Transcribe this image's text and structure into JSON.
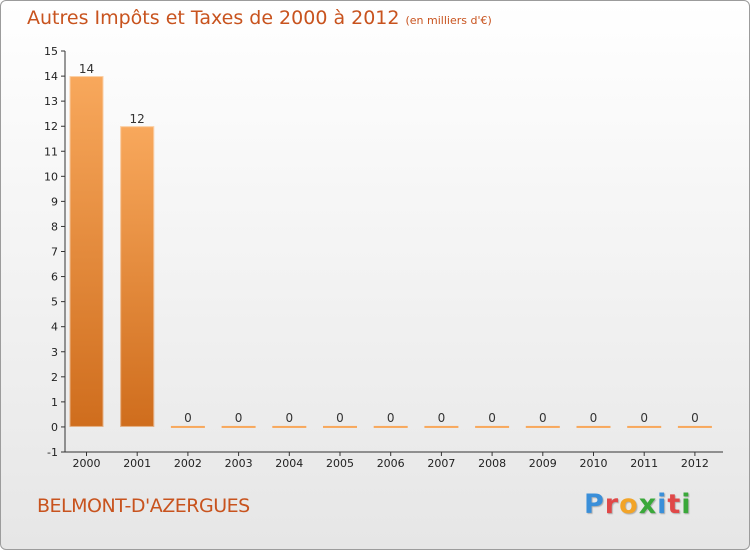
{
  "title": "Autres Impôts et Taxes de 2000 à 2012",
  "unit": "(en milliers d'€)",
  "commune": "BELMONT-D'AZERGUES",
  "brand": {
    "letters": [
      "P",
      "r",
      "o",
      "x",
      "i",
      "t",
      "i"
    ],
    "colors": [
      "#3a8fd9",
      "#e04848",
      "#f2a428",
      "#3aa83a",
      "#3a8fd9",
      "#e04848",
      "#3aa83a"
    ]
  },
  "colors": {
    "title": "#c8531e",
    "bar_light": "#f8a85c",
    "bar_dark": "#cf6d1d",
    "axis": "#333333"
  },
  "chart_data": {
    "type": "bar",
    "title": "Autres Impôts et Taxes de 2000 à 2012",
    "subtitle": "(en milliers d'€)",
    "categories": [
      "2000",
      "2001",
      "2002",
      "2003",
      "2004",
      "2005",
      "2006",
      "2007",
      "2008",
      "2009",
      "2010",
      "2011",
      "2012"
    ],
    "values": [
      14,
      12,
      0,
      0,
      0,
      0,
      0,
      0,
      0,
      0,
      0,
      0,
      0
    ],
    "data_labels": [
      "14",
      "12",
      "0",
      "0",
      "0",
      "0",
      "0",
      "0",
      "0",
      "0",
      "0",
      "0",
      "0"
    ],
    "yticks": [
      "-1",
      "0",
      "1",
      "2",
      "3",
      "4",
      "5",
      "6",
      "7",
      "8",
      "9",
      "10",
      "11",
      "12",
      "13",
      "14",
      "15"
    ],
    "ylim": [
      -1,
      15
    ],
    "grid": false,
    "legend": "none"
  }
}
